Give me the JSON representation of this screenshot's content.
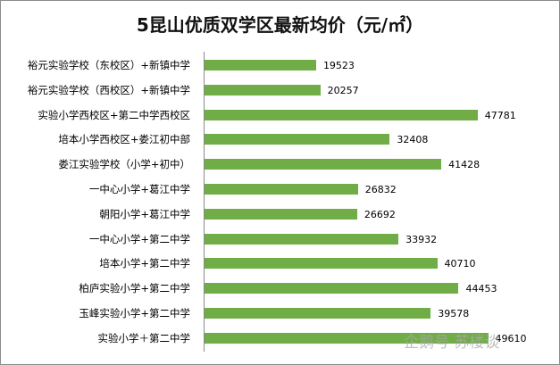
{
  "chart_data": {
    "type": "bar",
    "orientation": "horizontal",
    "title": "5昆山优质双学区最新均价（元/㎡）",
    "categories": [
      "裕元实验学校（东校区）+新镇中学",
      "裕元实验学校（西校区）+新镇中学",
      "实验小学西校区+第二中学西校区",
      "培本小学西校区+娄江初中部",
      "娄江实验学校（小学+初中）",
      "一中心小学+葛江中学",
      "朝阳小学+葛江中学",
      "一中心小学+第二中学",
      "培本小学+第二中学",
      "柏庐实验小学+第二中学",
      "玉峰实验小学+第二中学",
      "实验小学＋第二中学"
    ],
    "values": [
      19523,
      20257,
      47781,
      32408,
      41428,
      26832,
      26692,
      33932,
      40710,
      44453,
      39578,
      49610
    ],
    "xlim": [
      0,
      55000
    ],
    "grid": false,
    "color": "#70ad47"
  },
  "watermark": "企鹅号 苏楼谈"
}
